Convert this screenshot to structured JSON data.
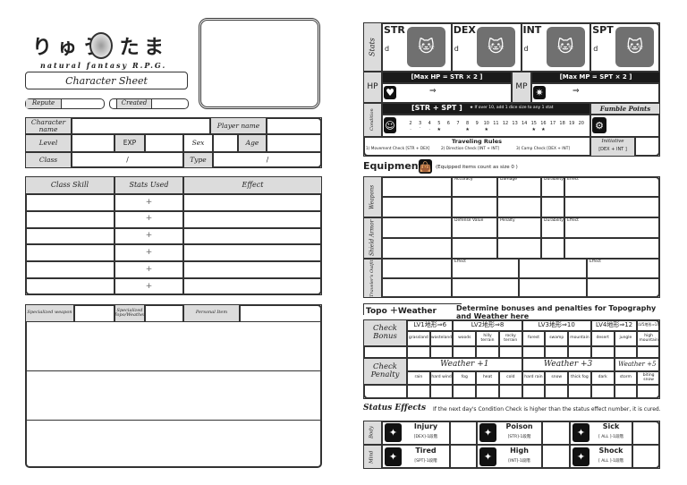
{
  "logo": {
    "title": "りゅう たま",
    "subtitle": "natural fantasy R.P.G.",
    "banner": "Character Sheet"
  },
  "header": {
    "repute": "Repute",
    "created": "Created"
  },
  "profile": {
    "character_name": "Character name",
    "player_name": "Player name",
    "level": "Level",
    "exp": "EXP",
    "sex": "Sex",
    "age": "Age",
    "class": "Class",
    "type": "Type",
    "slash": "/"
  },
  "skills": {
    "headers": [
      "Class Skill",
      "Stats Used",
      "Effect"
    ],
    "plus": "+",
    "rows": 6
  },
  "items": {
    "specialized_weapon": "Specialized weapon",
    "specialized_topo": "Specialized Topo/Weather",
    "personal_item": "Personal Item"
  },
  "stats": {
    "label": "Stats",
    "cols": [
      {
        "name": "STR",
        "die": "d",
        "icon": "candy-icon"
      },
      {
        "name": "DEX",
        "die": "d",
        "icon": "bird-icon"
      },
      {
        "name": "INT",
        "die": "d",
        "icon": "book-icon"
      },
      {
        "name": "SPT",
        "die": "d",
        "icon": "crystal-icon"
      }
    ],
    "hp": "HP",
    "hp_formula": "[Max HP = STR × 2 ]",
    "mp": "MP",
    "mp_formula": "[Max MP = SPT × 2 ]",
    "arrow": "⇒",
    "condition": "Condition",
    "condition_formula": "[STR + SPT ]",
    "condition_note": "★ If over 10, add 1 dice size to any 1 stat",
    "fumble": "Fumble Points",
    "numbers": [
      "2",
      "3",
      "4",
      "5",
      "6",
      "7",
      "8",
      "9",
      "10",
      "11",
      "12",
      "13",
      "14",
      "15",
      "16",
      "17",
      "18",
      "19",
      "20"
    ],
    "traveling_title": "Traveling Rules",
    "traveling": [
      "1) Movement Check [STR + DEX]",
      "2) Direction Check [INT + INT]",
      "3) Camp Check [DEX + INT]"
    ],
    "initiative": "Initiative",
    "initiative_formula": "[DEX + INT ]"
  },
  "equipment": {
    "title": "Equipment",
    "note": "(Equipped items count as size 0 )",
    "weapons": "Weapons",
    "weapon_cols": [
      "Accuracy",
      "Damage",
      "Durability",
      "Effect"
    ],
    "armor": "Shield Armor",
    "armor_cols": [
      "Defense Value",
      "Penalty",
      "Durability",
      "Effect"
    ],
    "outfit": "Traveler's Outfit",
    "outfit_cols": [
      "Effect",
      "Effect"
    ]
  },
  "topo": {
    "title": "Topo ＋Weather",
    "desc": "Determine bonuses and penalties for Topography and Weather here",
    "bonus": "Check Bonus",
    "penalty": "Check Penalty",
    "levels": [
      {
        "label": "LV1地形⇒6",
        "span": 2
      },
      {
        "label": "LV2地形⇒8",
        "span": 3
      },
      {
        "label": "LV3地形⇒10",
        "span": 3
      },
      {
        "label": "LV4地形⇒12",
        "span": 2
      },
      {
        "label": "LV5地形⇒14",
        "span": 1
      }
    ],
    "terrains": [
      "grassland",
      "wasteland",
      "woods",
      "hilly terrain",
      "rocky terrain",
      "forest",
      "swamp",
      "mountain",
      "desert",
      "jungle",
      "high mountain"
    ],
    "weather_groups": [
      {
        "label": "Weather +1",
        "span": 5
      },
      {
        "label": "Weather +3",
        "span": 4
      },
      {
        "label": "Weather +5",
        "span": 2
      }
    ],
    "weathers": [
      "rain",
      "hard wind",
      "fog",
      "heat",
      "cold",
      "hard rain",
      "snow",
      "thick fog",
      "dark",
      "storm",
      "biting snow"
    ]
  },
  "status": {
    "title": "Status Effects",
    "note": "If the next day's Condition Check is higher than the status effect number, it is cured.",
    "body": "Body",
    "mind": "Mind",
    "effects": [
      {
        "name": "Injury",
        "stat": "[DEX]-1段階",
        "icon": "injury-icon"
      },
      {
        "name": "Poison",
        "stat": "[STR]-1段階",
        "icon": "poison-icon"
      },
      {
        "name": "Sick",
        "stat": "[ ALL ]-1段階",
        "icon": "sick-icon"
      },
      {
        "name": "Tired",
        "stat": "[SPT]-1段階",
        "icon": "tired-icon"
      },
      {
        "name": "High",
        "stat": "[INT]-1段階",
        "icon": "high-icon"
      },
      {
        "name": "Shock",
        "stat": "[ ALL ]-1段階",
        "icon": "shock-icon"
      }
    ]
  }
}
